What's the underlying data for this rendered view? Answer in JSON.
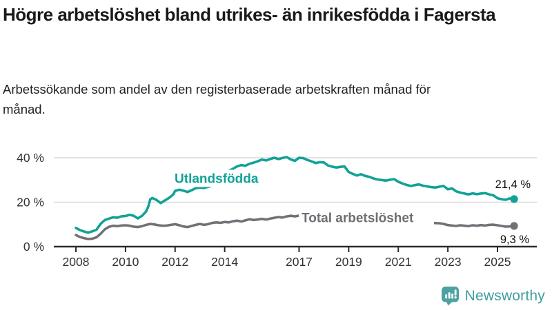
{
  "header": {
    "title": "Högre arbetslöshet bland utrikes- än inrikesfödda i Fagersta",
    "subtitle": "Arbetssökande som andel av den registerbaserade arbetskraften månad för månad."
  },
  "chart_data": {
    "type": "line",
    "title": "Högre arbetslöshet bland utrikes- än inrikesfödda i Fagersta",
    "xlabel": "",
    "ylabel": "Arbetssökande som andel av den registerbaserade arbetskraften",
    "x_range": [
      2007.6,
      2026.2
    ],
    "ylim": [
      0,
      44
    ],
    "grid": "horizontal",
    "colors": {
      "line_foreign": "#11a296",
      "line_total": "#717177",
      "label_total": "#6e6e73",
      "axis": "#2b2b2b",
      "gridline": "#d9d9d9",
      "tick_text": "#333333",
      "annotation_text": "#111111"
    },
    "y_axis": {
      "ticks": [
        0,
        20,
        40
      ],
      "labels": [
        "0 %",
        "20 %",
        "40 %"
      ]
    },
    "x_axis": {
      "ticks": [
        2008,
        2010,
        2012,
        2014,
        2017,
        2019,
        2021,
        2023,
        2025
      ],
      "labels": [
        "2008",
        "2010",
        "2012",
        "2014",
        "2017",
        "2019",
        "2021",
        "2023",
        "2025"
      ]
    },
    "series": [
      {
        "name": "Utlandsfödda",
        "end_label": "21,4 %",
        "label_anchor": {
          "x_year": 2011.98,
          "y_value": 30.7
        },
        "points": [
          [
            2008.0,
            8.4
          ],
          [
            2008.17,
            7.4
          ],
          [
            2008.33,
            6.8
          ],
          [
            2008.5,
            6.3
          ],
          [
            2008.67,
            6.9
          ],
          [
            2008.83,
            7.6
          ],
          [
            2009.0,
            10.3
          ],
          [
            2009.17,
            12.0
          ],
          [
            2009.33,
            12.6
          ],
          [
            2009.5,
            13.2
          ],
          [
            2009.67,
            13.0
          ],
          [
            2009.83,
            13.6
          ],
          [
            2010.0,
            13.8
          ],
          [
            2010.17,
            14.3
          ],
          [
            2010.33,
            13.9
          ],
          [
            2010.5,
            12.7
          ],
          [
            2010.67,
            13.9
          ],
          [
            2010.83,
            15.8
          ],
          [
            2010.92,
            18.0
          ],
          [
            2011.0,
            21.3
          ],
          [
            2011.08,
            21.9
          ],
          [
            2011.25,
            21.0
          ],
          [
            2011.42,
            19.6
          ],
          [
            2011.58,
            20.7
          ],
          [
            2011.75,
            21.9
          ],
          [
            2011.92,
            23.4
          ],
          [
            2012.0,
            25.1
          ],
          [
            2012.17,
            25.6
          ],
          [
            2012.33,
            25.2
          ],
          [
            2012.5,
            24.6
          ],
          [
            2012.67,
            25.4
          ],
          [
            2012.83,
            26.3
          ],
          [
            2013.0,
            26.6
          ],
          [
            2013.17,
            26.4
          ],
          [
            2013.33,
            26.9
          ],
          [
            2013.5,
            27.4
          ],
          [
            2013.67,
            29.0
          ],
          [
            2013.83,
            31.5
          ],
          [
            2014.0,
            33.4
          ],
          [
            2014.17,
            34.1
          ],
          [
            2014.33,
            35.0
          ],
          [
            2014.5,
            36.1
          ],
          [
            2014.67,
            36.7
          ],
          [
            2014.83,
            36.4
          ],
          [
            2015.0,
            37.3
          ],
          [
            2015.17,
            37.8
          ],
          [
            2015.33,
            38.4
          ],
          [
            2015.5,
            39.2
          ],
          [
            2015.67,
            38.8
          ],
          [
            2015.83,
            39.4
          ],
          [
            2016.0,
            40.0
          ],
          [
            2016.17,
            39.4
          ],
          [
            2016.33,
            39.9
          ],
          [
            2016.5,
            40.3
          ],
          [
            2016.67,
            39.2
          ],
          [
            2016.83,
            38.6
          ],
          [
            2017.0,
            40.0
          ],
          [
            2017.17,
            39.8
          ],
          [
            2017.33,
            39.0
          ],
          [
            2017.5,
            38.4
          ],
          [
            2017.67,
            37.6
          ],
          [
            2017.83,
            38.0
          ],
          [
            2018.0,
            37.9
          ],
          [
            2018.17,
            36.5
          ],
          [
            2018.33,
            36.0
          ],
          [
            2018.5,
            35.6
          ],
          [
            2018.67,
            35.9
          ],
          [
            2018.83,
            36.1
          ],
          [
            2019.0,
            33.6
          ],
          [
            2019.17,
            32.7
          ],
          [
            2019.33,
            32.0
          ],
          [
            2019.5,
            32.6
          ],
          [
            2019.67,
            31.8
          ],
          [
            2019.83,
            31.4
          ],
          [
            2020.0,
            30.7
          ],
          [
            2020.17,
            30.2
          ],
          [
            2020.33,
            30.0
          ],
          [
            2020.5,
            29.7
          ],
          [
            2020.67,
            30.1
          ],
          [
            2020.83,
            30.4
          ],
          [
            2021.0,
            29.2
          ],
          [
            2021.17,
            28.4
          ],
          [
            2021.33,
            27.8
          ],
          [
            2021.5,
            27.3
          ],
          [
            2021.67,
            27.7
          ],
          [
            2021.83,
            28.0
          ],
          [
            2022.0,
            27.4
          ],
          [
            2022.17,
            27.1
          ],
          [
            2022.33,
            26.8
          ],
          [
            2022.5,
            26.6
          ],
          [
            2022.67,
            27.0
          ],
          [
            2022.83,
            27.3
          ],
          [
            2023.0,
            25.8
          ],
          [
            2023.17,
            26.2
          ],
          [
            2023.33,
            24.9
          ],
          [
            2023.5,
            24.3
          ],
          [
            2023.67,
            23.9
          ],
          [
            2023.83,
            23.5
          ],
          [
            2024.0,
            24.0
          ],
          [
            2024.17,
            23.6
          ],
          [
            2024.33,
            23.9
          ],
          [
            2024.5,
            24.1
          ],
          [
            2024.67,
            23.5
          ],
          [
            2024.83,
            23.1
          ],
          [
            2025.0,
            21.8
          ],
          [
            2025.17,
            21.3
          ],
          [
            2025.33,
            21.1
          ],
          [
            2025.5,
            21.7
          ],
          [
            2025.67,
            21.4
          ]
        ]
      },
      {
        "name": "Total arbetslöshet",
        "end_label": "9,3 %",
        "label_anchor": {
          "x_year": 2017.1,
          "y_value": 13.0
        },
        "points": [
          [
            2008.0,
            5.2
          ],
          [
            2008.17,
            4.3
          ],
          [
            2008.33,
            3.8
          ],
          [
            2008.5,
            3.4
          ],
          [
            2008.67,
            3.6
          ],
          [
            2008.83,
            4.2
          ],
          [
            2009.0,
            5.8
          ],
          [
            2009.17,
            7.8
          ],
          [
            2009.33,
            8.9
          ],
          [
            2009.5,
            9.4
          ],
          [
            2009.67,
            9.2
          ],
          [
            2009.83,
            9.5
          ],
          [
            2010.0,
            9.6
          ],
          [
            2010.17,
            9.4
          ],
          [
            2010.33,
            9.0
          ],
          [
            2010.5,
            8.8
          ],
          [
            2010.67,
            9.2
          ],
          [
            2010.83,
            9.8
          ],
          [
            2011.0,
            10.2
          ],
          [
            2011.17,
            10.0
          ],
          [
            2011.33,
            9.6
          ],
          [
            2011.5,
            9.4
          ],
          [
            2011.67,
            9.5
          ],
          [
            2011.83,
            9.8
          ],
          [
            2012.0,
            10.1
          ],
          [
            2012.17,
            9.6
          ],
          [
            2012.33,
            9.1
          ],
          [
            2012.5,
            8.8
          ],
          [
            2012.67,
            9.3
          ],
          [
            2012.83,
            9.8
          ],
          [
            2013.0,
            10.2
          ],
          [
            2013.17,
            9.8
          ],
          [
            2013.33,
            10.1
          ],
          [
            2013.5,
            10.7
          ],
          [
            2013.67,
            10.9
          ],
          [
            2013.83,
            10.7
          ],
          [
            2014.0,
            11.1
          ],
          [
            2014.17,
            10.9
          ],
          [
            2014.33,
            11.4
          ],
          [
            2014.5,
            11.7
          ],
          [
            2014.67,
            11.3
          ],
          [
            2014.83,
            11.8
          ],
          [
            2015.0,
            12.3
          ],
          [
            2015.17,
            12.0
          ],
          [
            2015.33,
            12.2
          ],
          [
            2015.5,
            12.5
          ],
          [
            2015.67,
            12.2
          ],
          [
            2015.83,
            12.6
          ],
          [
            2016.0,
            13.0
          ],
          [
            2016.17,
            13.3
          ],
          [
            2016.33,
            13.1
          ],
          [
            2016.5,
            13.6
          ],
          [
            2016.67,
            13.9
          ],
          [
            2016.83,
            13.6
          ],
          [
            2017.0,
            14.0
          ],
          [
            2017.17,
            14.2
          ],
          [
            2017.33,
            13.9
          ],
          [
            2017.5,
            13.7
          ],
          [
            2017.67,
            13.4
          ],
          [
            2017.83,
            13.2
          ],
          [
            2018.0,
            13.0
          ],
          [
            2018.17,
            12.8
          ],
          [
            2018.33,
            12.6
          ],
          [
            2018.5,
            12.4
          ],
          [
            2018.67,
            12.2
          ],
          [
            2018.83,
            12.1
          ],
          [
            2019.0,
            12.0
          ],
          [
            2019.17,
            11.9
          ],
          [
            2019.33,
            11.8
          ],
          [
            2019.5,
            11.7
          ],
          [
            2019.67,
            11.6
          ],
          [
            2019.83,
            11.7
          ],
          [
            2020.0,
            11.9
          ],
          [
            2020.17,
            12.2
          ],
          [
            2020.33,
            12.4
          ],
          [
            2020.5,
            12.3
          ],
          [
            2020.67,
            12.2
          ],
          [
            2020.83,
            12.0
          ],
          [
            2021.0,
            11.9
          ],
          [
            2021.17,
            11.7
          ],
          [
            2021.33,
            11.5
          ],
          [
            2021.5,
            11.3
          ],
          [
            2021.67,
            11.2
          ],
          [
            2021.83,
            11.0
          ],
          [
            2022.0,
            10.9
          ],
          [
            2022.17,
            10.8
          ],
          [
            2022.33,
            10.7
          ],
          [
            2022.5,
            10.6
          ],
          [
            2022.67,
            10.5
          ],
          [
            2022.83,
            10.2
          ],
          [
            2023.0,
            9.7
          ],
          [
            2023.17,
            9.5
          ],
          [
            2023.33,
            9.3
          ],
          [
            2023.5,
            9.6
          ],
          [
            2023.67,
            9.4
          ],
          [
            2023.83,
            9.2
          ],
          [
            2024.0,
            9.6
          ],
          [
            2024.17,
            9.4
          ],
          [
            2024.33,
            9.7
          ],
          [
            2024.5,
            9.5
          ],
          [
            2024.67,
            9.8
          ],
          [
            2024.83,
            9.9
          ],
          [
            2025.0,
            9.6
          ],
          [
            2025.17,
            9.3
          ],
          [
            2025.33,
            9.0
          ],
          [
            2025.5,
            9.1
          ],
          [
            2025.67,
            9.3
          ]
        ]
      }
    ]
  },
  "footer": {
    "brand": "Newsworthy",
    "brand_color": "#3f9d9d",
    "logo_color": "#4aa2a2"
  }
}
